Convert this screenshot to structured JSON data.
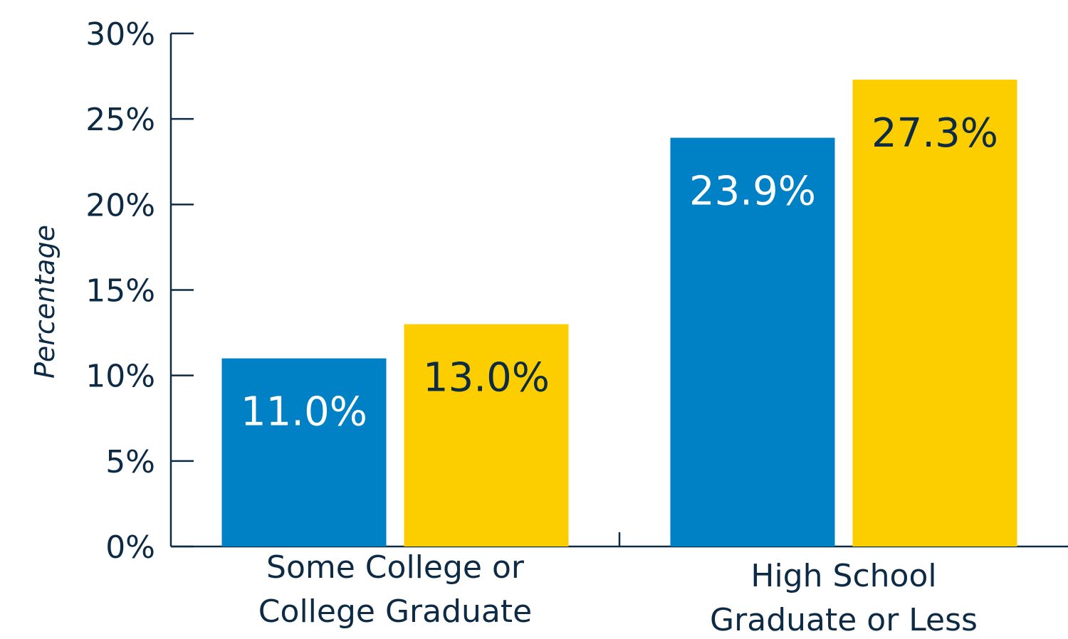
{
  "chart_data": {
    "type": "bar",
    "title": "",
    "xlabel": "",
    "ylabel": "Percentage",
    "ylim": [
      0,
      30
    ],
    "yticks": [
      "0%",
      "5%",
      "10%",
      "15%",
      "20%",
      "25%",
      "30%"
    ],
    "ytick_values": [
      0,
      5,
      10,
      15,
      20,
      25,
      30
    ],
    "categories": [
      [
        "Some College or",
        "College Graduate"
      ],
      [
        "High School",
        "Graduate or Less"
      ]
    ],
    "series": [
      {
        "values": [
          11.0,
          23.9
        ],
        "labels": [
          "11.0%",
          "23.9%"
        ],
        "color": "#0081c6",
        "label_color": "#ffffff"
      },
      {
        "values": [
          13.0,
          27.3
        ],
        "labels": [
          "13.0%",
          "27.3%"
        ],
        "color": "#fcce00",
        "label_color": "#0d2b45"
      }
    ],
    "axis_color": "#0d2b45",
    "grid": false,
    "legend": "none"
  }
}
